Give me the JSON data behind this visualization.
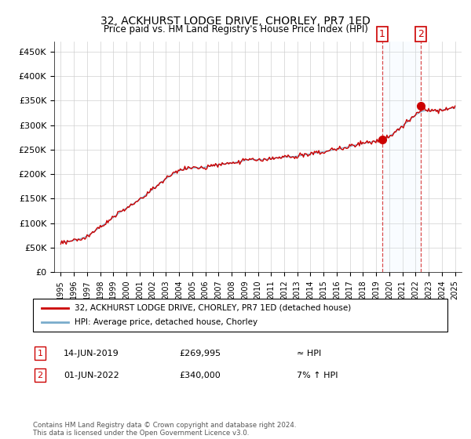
{
  "title": "32, ACKHURST LODGE DRIVE, CHORLEY, PR7 1ED",
  "subtitle": "Price paid vs. HM Land Registry's House Price Index (HPI)",
  "footer": "Contains HM Land Registry data © Crown copyright and database right 2024.\nThis data is licensed under the Open Government Licence v3.0.",
  "legend_line1": "32, ACKHURST LODGE DRIVE, CHORLEY, PR7 1ED (detached house)",
  "legend_line2": "HPI: Average price, detached house, Chorley",
  "annotation1_label": "1",
  "annotation1_date": "14-JUN-2019",
  "annotation1_price": "£269,995",
  "annotation1_hpi": "≈ HPI",
  "annotation2_label": "2",
  "annotation2_date": "01-JUN-2022",
  "annotation2_price": "£340,000",
  "annotation2_hpi": "7% ↑ HPI",
  "red_color": "#cc0000",
  "blue_color": "#7aaccc",
  "shade_color": "#ddeeff",
  "marker1_x": 2019.45,
  "marker1_y": 269995,
  "marker2_x": 2022.42,
  "marker2_y": 340000,
  "ylim_min": 0,
  "ylim_max": 470000,
  "xlim_min": 1994.5,
  "xlim_max": 2025.5,
  "yticks": [
    0,
    50000,
    100000,
    150000,
    200000,
    250000,
    300000,
    350000,
    400000,
    450000
  ],
  "ytick_labels": [
    "£0",
    "£50K",
    "£100K",
    "£150K",
    "£200K",
    "£250K",
    "£300K",
    "£350K",
    "£400K",
    "£450K"
  ]
}
